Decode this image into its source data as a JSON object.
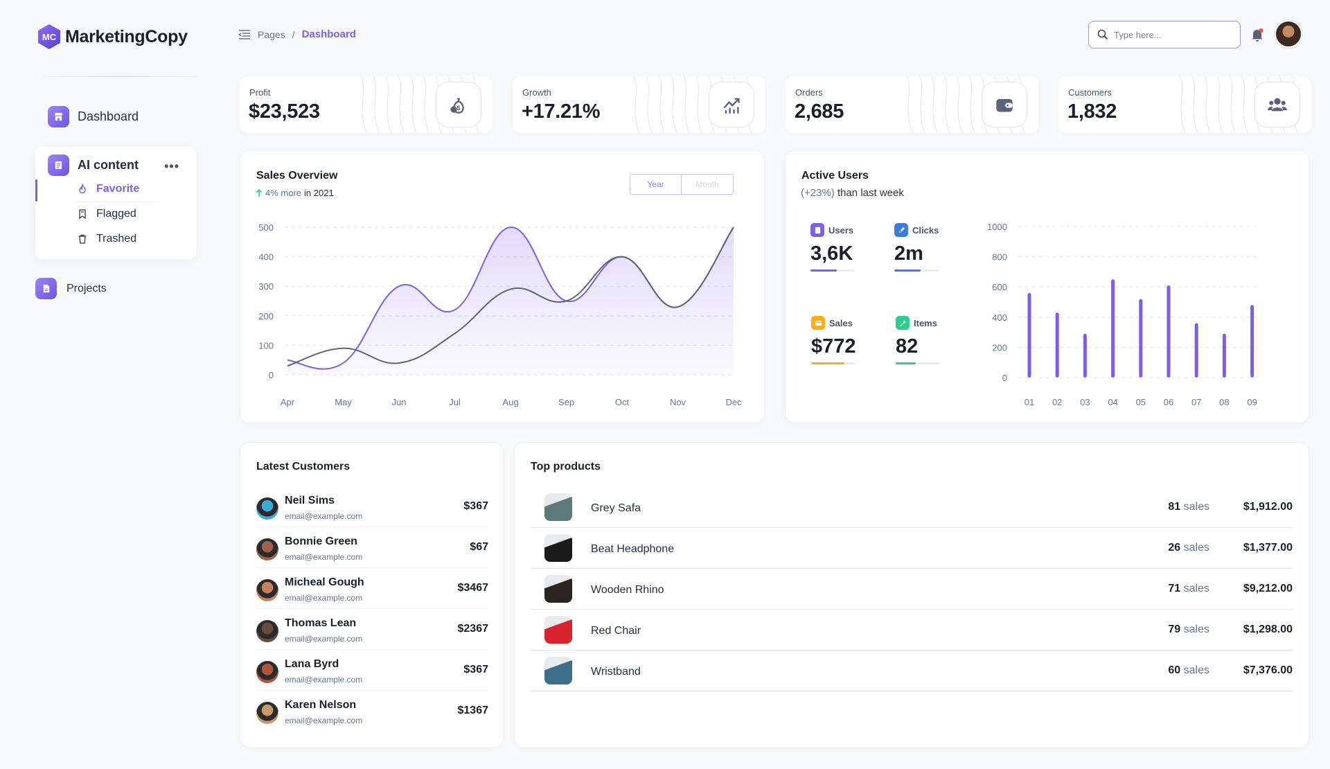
{
  "app": {
    "logo_mark": "MC",
    "logo_text": "MarketingCopy",
    "logo_icon": "hexagon-logo-icon"
  },
  "sidebar": {
    "dashboard_label": "Dashboard",
    "ai_content": {
      "label": "AI content",
      "more": "•••",
      "items": [
        {
          "label": "Favorite",
          "icon": "flame-icon",
          "active": true
        },
        {
          "label": "Flagged",
          "icon": "bookmark-icon",
          "active": false
        },
        {
          "label": "Trashed",
          "icon": "trash-icon",
          "active": false
        }
      ]
    },
    "projects_label": "Projects"
  },
  "header": {
    "breadcrumb_root": "Pages",
    "breadcrumb_sep": "/",
    "breadcrumb_current": "Dashboard",
    "search_placeholder": "Type here..."
  },
  "stats": [
    {
      "label": "Profit",
      "value": "$23,523",
      "icon": "money-bag-icon"
    },
    {
      "label": "Growth",
      "value": "+17.21%",
      "icon": "trend-chart-icon"
    },
    {
      "label": "Orders",
      "value": "2,685",
      "icon": "wallet-icon"
    },
    {
      "label": "Customers",
      "value": "1,832",
      "icon": "users-icon"
    }
  ],
  "sales_overview": {
    "title": "Sales Overview",
    "sub_highlight": "4% more",
    "sub_rest": "in 2021",
    "toggle": [
      "Year",
      "Month"
    ]
  },
  "active_users": {
    "title": "Active Users",
    "sub_pct": "(+23%)",
    "sub_rest": "than last week",
    "metrics": [
      {
        "label": "Users",
        "value": "3,6K",
        "color": "#7c5fe6",
        "progress": 0.6,
        "icon": "document-icon"
      },
      {
        "label": "Clicks",
        "value": "2m",
        "color": "#3b7ddd",
        "progress": 0.6,
        "icon": "rocket-icon"
      },
      {
        "label": "Sales",
        "value": "$772",
        "color": "#fbad17",
        "progress": 0.75,
        "icon": "credit-card-icon"
      },
      {
        "label": "Items",
        "value": "82",
        "color": "#2dce89",
        "progress": 0.45,
        "icon": "wrench-icon"
      }
    ]
  },
  "chart_data": [
    {
      "type": "area",
      "title": "Sales Overview",
      "categories": [
        "Apr",
        "May",
        "Jun",
        "Jul",
        "Aug",
        "Sep",
        "Oct",
        "Nov",
        "Dec"
      ],
      "ylim": [
        0,
        500
      ],
      "yticks": [
        0,
        100,
        200,
        300,
        400,
        500
      ],
      "grid": true,
      "series": [
        {
          "values": [
            50,
            40,
            300,
            220,
            500,
            250,
            400,
            230,
            500
          ],
          "color": "#7c5fe6",
          "filled": true
        },
        {
          "values": [
            30,
            90,
            40,
            140,
            290,
            250,
            400,
            230,
            500
          ],
          "color": "#5d6478",
          "filled": false
        }
      ],
      "line_points_note": ""
    },
    {
      "type": "bar",
      "title": "Active Users",
      "categories": [
        "01",
        "02",
        "03",
        "04",
        "05",
        "06",
        "07",
        "08",
        "09"
      ],
      "values": [
        560,
        430,
        290,
        650,
        520,
        610,
        360,
        290,
        480
      ],
      "ylim": [
        0,
        1000
      ],
      "yticks": [
        0,
        200,
        400,
        600,
        800,
        1000
      ],
      "grid": true,
      "color": "#7c5fe6"
    }
  ],
  "latest_customers": {
    "title": "Latest Customers",
    "rows": [
      {
        "name": "Neil Sims",
        "email": "email@example.com",
        "amount": "$367",
        "avatar_color": "#3fa9d8"
      },
      {
        "name": "Bonnie Green",
        "email": "email@example.com",
        "amount": "$67",
        "avatar_color": "#a0624a"
      },
      {
        "name": "Micheal Gough",
        "email": "email@example.com",
        "amount": "$3467",
        "avatar_color": "#c4835c"
      },
      {
        "name": "Thomas Lean",
        "email": "email@example.com",
        "amount": "$2367",
        "avatar_color": "#6b4b3c"
      },
      {
        "name": "Lana Byrd",
        "email": "email@example.com",
        "amount": "$367",
        "avatar_color": "#b3543e"
      },
      {
        "name": "Karen Nelson",
        "email": "email@example.com",
        "amount": "$1367",
        "avatar_color": "#c79a6a"
      }
    ]
  },
  "top_products": {
    "title": "Top products",
    "sales_unit": "sales",
    "rows": [
      {
        "name": "Grey Safa",
        "sales": "81",
        "price": "$1,912.00",
        "thumb": "#5c7a78"
      },
      {
        "name": "Beat Headphone",
        "sales": "26",
        "price": "$1,377.00",
        "thumb": "#1a1a1a"
      },
      {
        "name": "Wooden Rhino",
        "sales": "71",
        "price": "$9,212.00",
        "thumb": "#2a2320"
      },
      {
        "name": "Red Chair",
        "sales": "79",
        "price": "$1,298.00",
        "thumb": "#d9232c"
      },
      {
        "name": "Wristband",
        "sales": "60",
        "price": "$7,376.00",
        "thumb": "#3c6e8a"
      }
    ]
  }
}
